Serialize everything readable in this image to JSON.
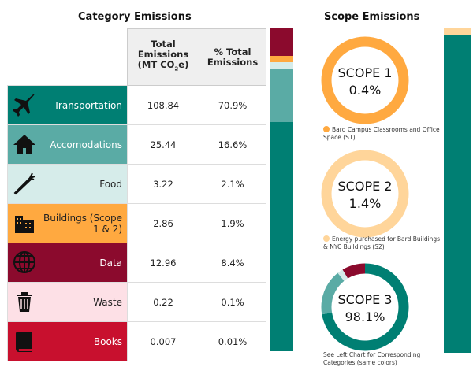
{
  "left_title": "Category Emissions",
  "right_title": "Scope Emissions",
  "table": {
    "headers": [
      "Total Emissions (MT CO2e)",
      "% Total Emissions"
    ],
    "header_total_parts": [
      "Total Emissions",
      "(MT CO",
      "2",
      "e)"
    ],
    "rows": [
      {
        "label": "Transportation",
        "value": "108.84",
        "pct": "70.9%",
        "color": "#007f73",
        "text": "#ffffff",
        "icon": "airplane-icon"
      },
      {
        "label": "Accomodations",
        "value": "25.44",
        "pct": "16.6%",
        "color": "#5aaba5",
        "text": "#ffffff",
        "icon": "house-icon"
      },
      {
        "label": "Food",
        "value": "3.22",
        "pct": "2.1%",
        "color": "#d6ecea",
        "text": "#222222",
        "icon": "carrot-icon"
      },
      {
        "label": "Buildings (Scope 1 & 2)",
        "value": "2.86",
        "pct": "1.9%",
        "color": "#ffa940",
        "text": "#222222",
        "icon": "building-icon"
      },
      {
        "label": "Data",
        "value": "12.96",
        "pct": "8.4%",
        "color": "#8b0a2d",
        "text": "#ffffff",
        "icon": "globe-icon"
      },
      {
        "label": "Waste",
        "value": "0.22",
        "pct": "0.1%",
        "color": "#fde0e6",
        "text": "#222222",
        "icon": "trash-icon"
      },
      {
        "label": "Books",
        "value": "0.007",
        "pct": "0.01%",
        "color": "#c8102e",
        "text": "#ffffff",
        "icon": "book-icon"
      }
    ]
  },
  "chart_data": [
    {
      "type": "bar",
      "stacked": true,
      "categories": [
        "Transportation",
        "Accomodations",
        "Food",
        "Buildings (Scope 1 & 2)",
        "Data",
        "Waste",
        "Books"
      ],
      "values": [
        70.9,
        16.6,
        2.1,
        1.9,
        8.4,
        0.1,
        0.01
      ]
    },
    {
      "type": "pie",
      "donut": true,
      "title": "SCOPE 1",
      "value_label": "0.4%",
      "values": [
        100
      ],
      "colors": [
        "#ffa940"
      ]
    },
    {
      "type": "pie",
      "donut": true,
      "title": "SCOPE 2",
      "value_label": "1.4%",
      "values": [
        100
      ],
      "colors": [
        "#ffd59a"
      ]
    },
    {
      "type": "pie",
      "donut": true,
      "title": "SCOPE 3",
      "value_label": "98.1%",
      "categories": [
        "Transportation",
        "Accomodations",
        "Food",
        "Data"
      ],
      "values": [
        70.9,
        16.6,
        2.1,
        8.4
      ]
    },
    {
      "type": "bar",
      "stacked": true,
      "categories": [
        "Scope 1 & 2",
        "Scope 3"
      ],
      "values": [
        1.9,
        98.1
      ],
      "colors": [
        "#ffd59a",
        "#007f73"
      ]
    }
  ],
  "scopes": [
    {
      "title": "SCOPE 1",
      "pct": "0.4%",
      "note": "Bard Campus Classrooms and Office Space (S1)",
      "color": "#ffa940"
    },
    {
      "title": "SCOPE 2",
      "pct": "1.4%",
      "note": "Energy purchased for Bard Buildings & NYC Buildings (S2)",
      "color": "#ffd59a"
    },
    {
      "title": "SCOPE 3",
      "pct": "98.1%",
      "note": "See Left Chart for Corresponding Categories (same colors)"
    }
  ]
}
